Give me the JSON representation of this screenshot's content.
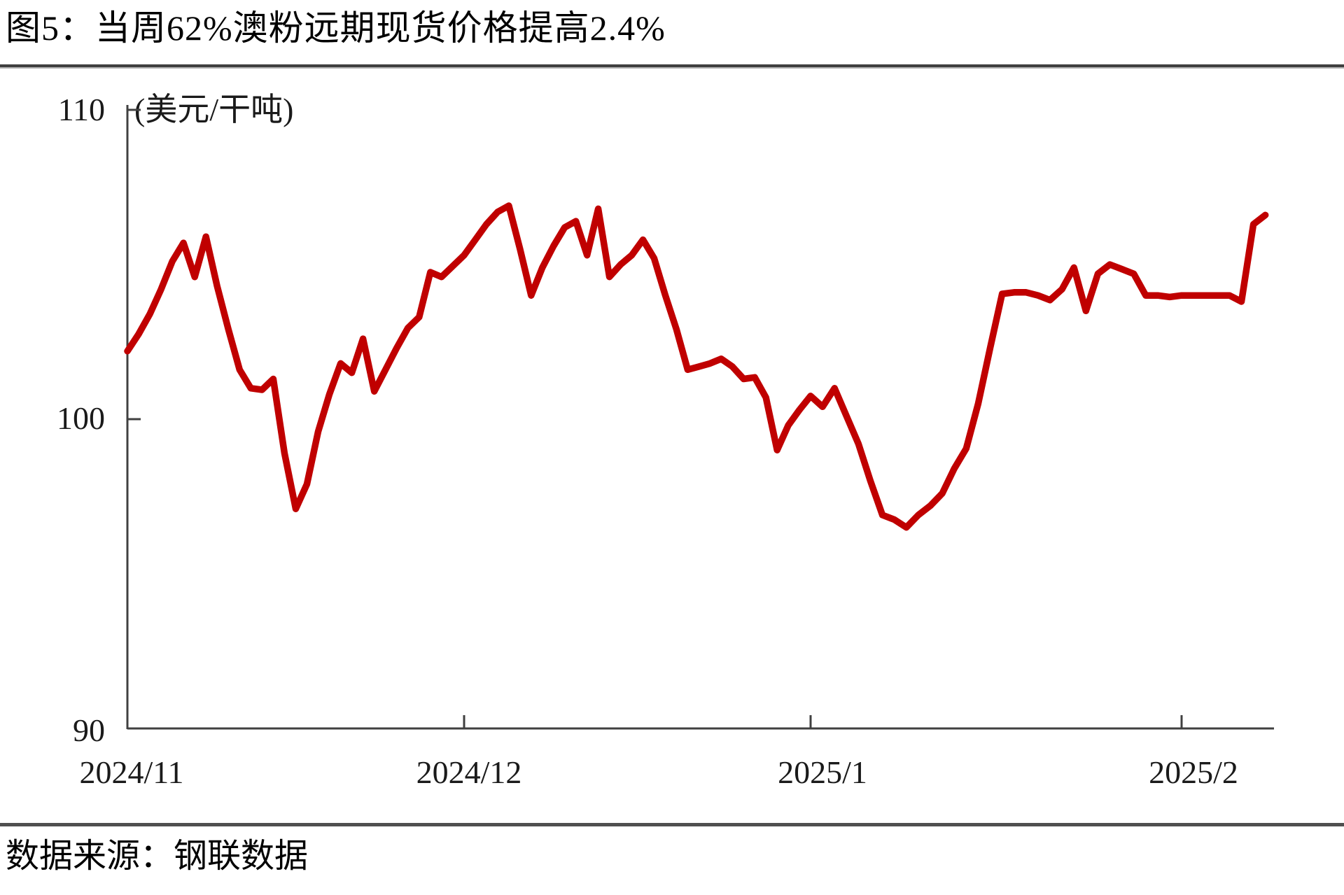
{
  "title": "图5：当周62%澳粉远期现货价格提高2.4%",
  "source": "数据来源：钢联数据",
  "axis": {
    "unit_label": "(美元/干吨)",
    "y_ticks": [
      "110",
      "100",
      "90"
    ],
    "x_ticks": [
      "2024/11",
      "2024/12",
      "2025/1",
      "2025/2"
    ]
  },
  "colors": {
    "line": "#c00000",
    "axis": "#404040"
  },
  "chart_data": {
    "type": "line",
    "title": "当周62%澳粉远期现货价格提高2.4%",
    "series_name": "62%澳粉远期现货价格",
    "xlabel": "",
    "ylabel": "美元/干吨",
    "ylim": [
      90,
      110
    ],
    "yticks": [
      90,
      100,
      110
    ],
    "xticks": [
      "2024/11",
      "2024/12",
      "2025/1",
      "2025/2"
    ],
    "grid": false,
    "legend": "none",
    "line_color": "#c00000",
    "months": [
      {
        "label": "2024/11",
        "values": [
          102.2,
          102.75,
          103.4,
          104.2,
          105.1,
          105.7,
          104.6,
          105.9,
          104.3,
          102.9,
          101.6,
          101.0,
          100.95,
          101.3,
          98.9,
          97.1,
          97.9,
          99.6,
          100.8,
          101.8,
          101.5,
          102.6,
          100.9,
          101.6,
          102.3,
          102.95,
          103.3,
          104.75,
          104.6,
          104.95
        ]
      },
      {
        "label": "2024/12",
        "values": [
          105.3,
          105.8,
          106.3,
          106.7,
          106.9,
          105.5,
          104.0,
          104.9,
          105.6,
          106.2,
          106.4,
          105.3,
          106.8,
          104.6,
          105.0,
          105.3,
          105.8,
          105.2,
          104.0,
          102.9,
          101.6,
          101.7,
          101.8,
          101.95,
          101.7,
          101.3,
          101.35,
          100.7,
          99.0,
          99.8,
          100.3
        ]
      },
      {
        "label": "2025/1",
        "values": [
          100.75,
          100.4,
          101.0,
          100.1,
          99.2,
          98.0,
          96.9,
          96.75,
          96.5,
          96.9,
          97.2,
          97.6,
          98.4,
          99.05,
          100.5,
          102.3,
          104.05,
          104.1,
          104.1,
          104.0,
          103.85,
          104.2,
          104.9,
          103.5,
          104.7,
          105.0,
          104.85,
          104.7,
          104.0,
          104.0,
          103.95
        ]
      },
      {
        "label": "2025/2",
        "values": [
          104.0,
          104.0,
          104.0,
          104.0,
          104.0,
          103.8,
          106.3,
          106.6
        ]
      }
    ]
  }
}
